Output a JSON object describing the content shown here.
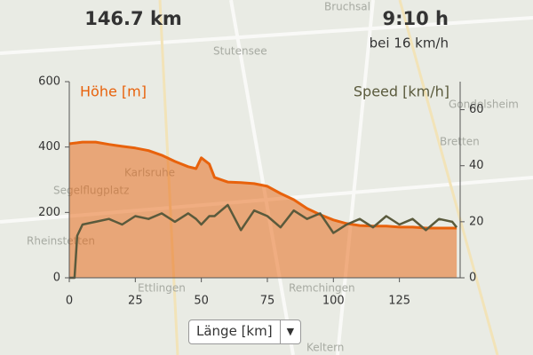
{
  "chart_data": {
    "type": "elevation-speed",
    "distance_label": "146.7 km",
    "duration_label": "9:10 h",
    "avg_speed_label": "bei 16 km/h",
    "x_label": "Länge [km]",
    "x": [
      0,
      2,
      3,
      5,
      10,
      15,
      20,
      25,
      30,
      35,
      40,
      45,
      48,
      50,
      53,
      55,
      60,
      65,
      70,
      75,
      80,
      85,
      90,
      95,
      100,
      105,
      110,
      115,
      120,
      125,
      130,
      135,
      140,
      145,
      146.7
    ],
    "series": [
      {
        "name": "Höhe [m]",
        "color": "#e8620c",
        "values": [
          410,
          412,
          413,
          415,
          415,
          408,
          402,
          397,
          389,
          375,
          356,
          340,
          334,
          367,
          348,
          307,
          293,
          291,
          288,
          280,
          258,
          239,
          212,
          193,
          177,
          166,
          160,
          158,
          158,
          155,
          155,
          152,
          152,
          152,
          152
        ]
      },
      {
        "name": "Speed [km/h]",
        "color": "#5a5a3c",
        "axis": "y2",
        "values": [
          0,
          0,
          15,
          19,
          20,
          21,
          19,
          22,
          21,
          23,
          20,
          23,
          21,
          19,
          22,
          22,
          26,
          17,
          24,
          22,
          18,
          24,
          21,
          23,
          16,
          19,
          21,
          18,
          22,
          19,
          21,
          17,
          21,
          20,
          18
        ]
      }
    ],
    "xlim": [
      0,
      148
    ],
    "xticks": [
      0,
      25,
      50,
      75,
      100,
      125
    ],
    "ylim": [
      0,
      600
    ],
    "yticks": [
      0,
      200,
      400,
      600
    ],
    "y2lim": [
      0,
      70
    ],
    "y2ticks": [
      0,
      20,
      40,
      60
    ]
  },
  "map": {
    "labels": [
      "Bruchsal",
      "Stutensee",
      "Gondelsheim",
      "Bretten",
      "Karlsruhe",
      "Segelflugplatz",
      "Rheinstetten",
      "Ettlingen",
      "Remchingen",
      "Keltern"
    ]
  }
}
